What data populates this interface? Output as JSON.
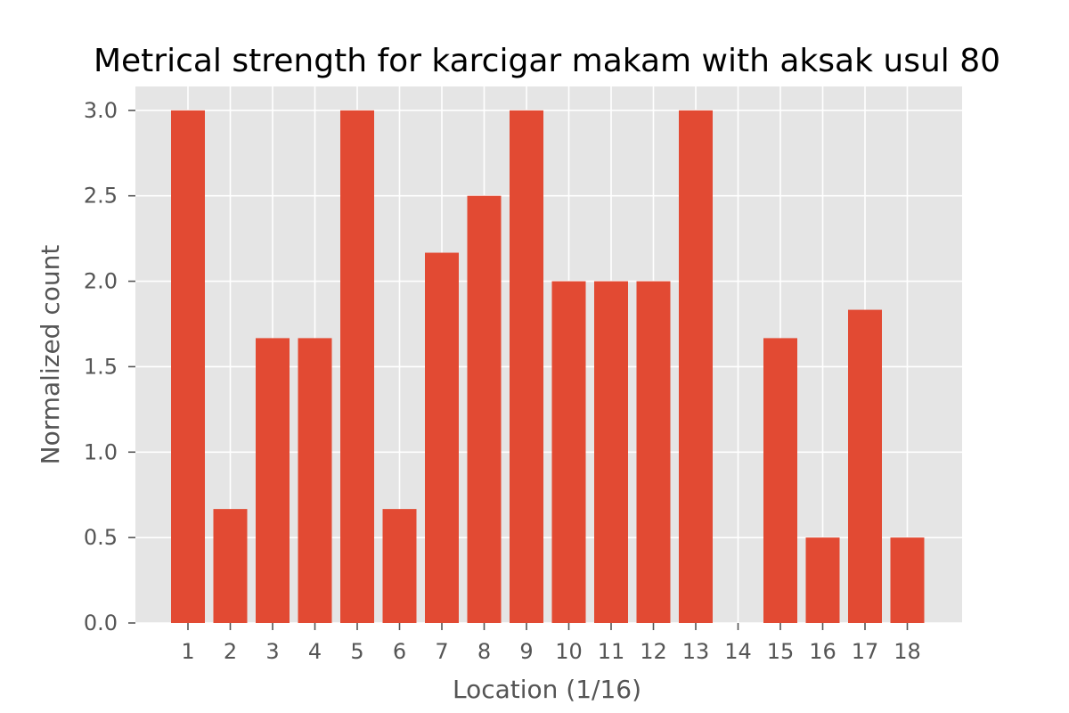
{
  "chart_data": {
    "type": "bar",
    "title": "Metrical strength for karcigar makam with aksak usul 80",
    "xlabel": "Location (1/16)",
    "ylabel": "Normalized count",
    "categories": [
      "1",
      "2",
      "3",
      "4",
      "5",
      "6",
      "7",
      "8",
      "9",
      "10",
      "11",
      "12",
      "13",
      "14",
      "15",
      "16",
      "17",
      "18"
    ],
    "values": [
      3.0,
      0.667,
      1.667,
      1.667,
      3.0,
      0.667,
      2.167,
      2.5,
      3.0,
      2.0,
      2.0,
      2.0,
      3.0,
      0.0,
      1.667,
      0.5,
      1.833,
      0.5
    ],
    "y_ticks": [
      "0.0",
      "0.5",
      "1.0",
      "1.5",
      "2.0",
      "2.5",
      "3.0"
    ],
    "ylim": [
      0,
      3.14
    ],
    "grid": true,
    "style": "ggplot",
    "colors": {
      "bar": "#E24A33",
      "plot_background": "#E5E5E5",
      "grid": "#FFFFFF",
      "tick_text": "#555555",
      "title_text": "#000000"
    }
  }
}
